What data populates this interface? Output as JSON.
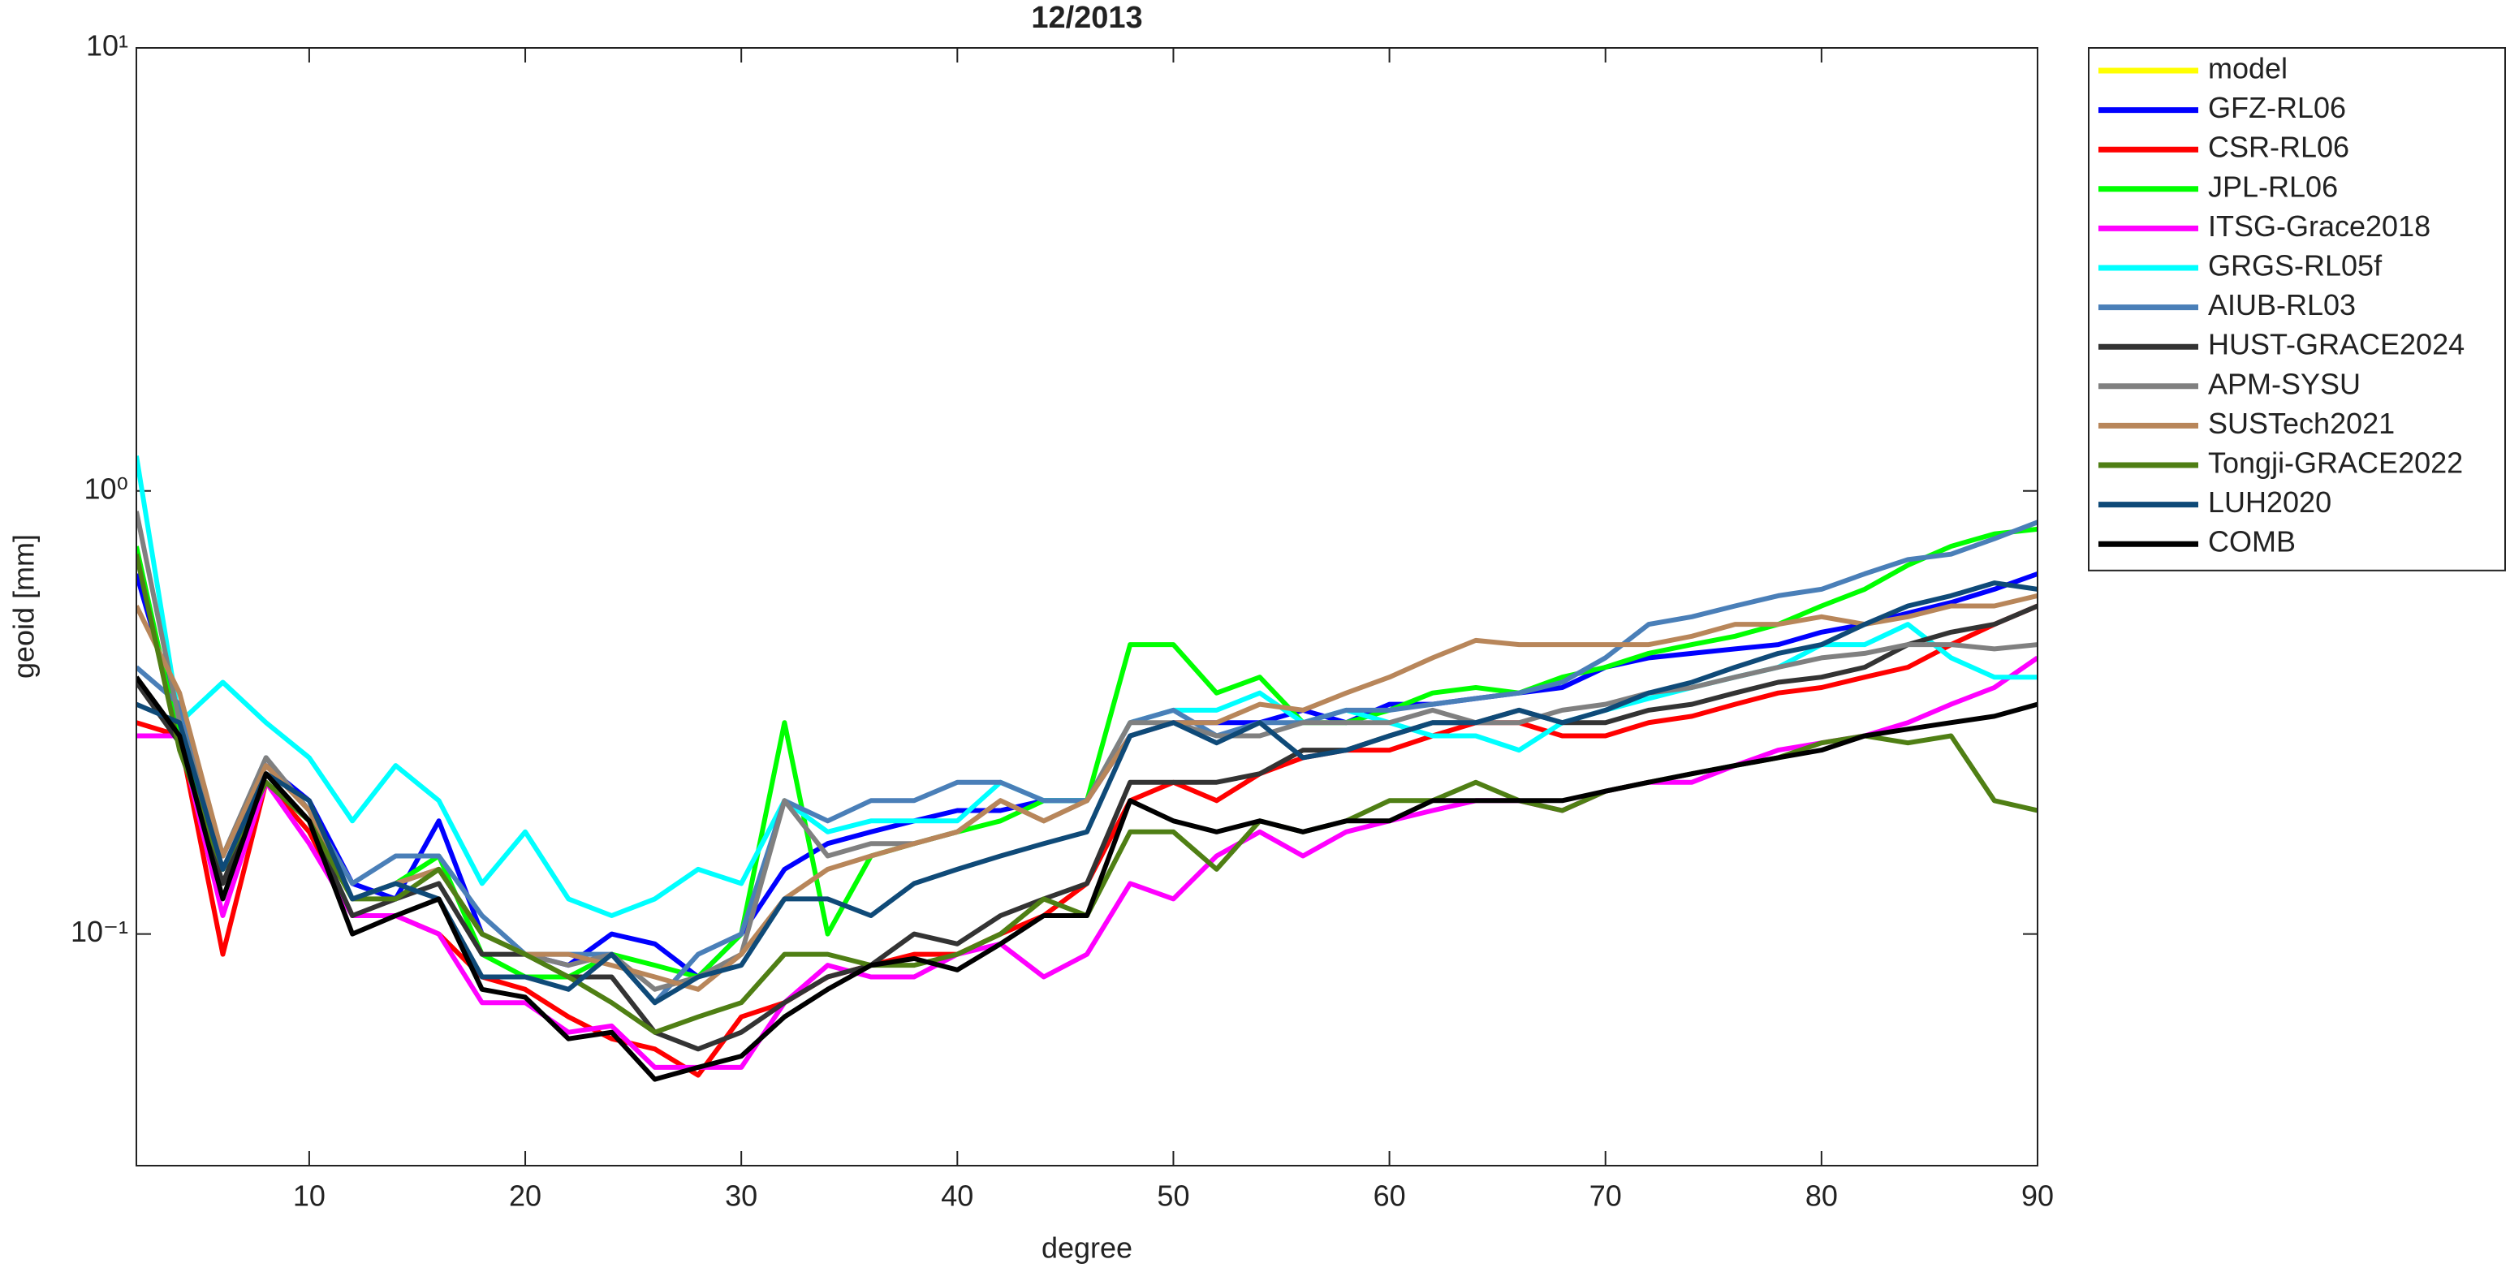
{
  "chart_data": {
    "type": "line",
    "title": "12/2013",
    "x_label": "degree",
    "y_label": "geoid [mm]",
    "y_scale": "log",
    "grid": false,
    "legend_position": "outside-right",
    "xlim": [
      2,
      90
    ],
    "xticks": [
      10,
      20,
      30,
      40,
      50,
      60,
      70,
      80,
      90
    ],
    "ylim": [
      0.03,
      10
    ],
    "yticks": [
      {
        "value": 0.1,
        "label": "10⁻¹"
      },
      {
        "value": 1,
        "label": "10⁰"
      },
      {
        "value": 10,
        "label": "10¹"
      }
    ],
    "x": [
      2,
      4,
      6,
      8,
      10,
      12,
      14,
      16,
      18,
      20,
      22,
      24,
      26,
      28,
      30,
      32,
      34,
      36,
      38,
      40,
      42,
      44,
      46,
      48,
      50,
      52,
      54,
      56,
      58,
      60,
      62,
      64,
      66,
      68,
      70,
      72,
      74,
      76,
      78,
      80,
      82,
      84,
      86,
      88,
      90
    ],
    "series": [
      {
        "name": "model",
        "color": "#ffff00",
        "values": [
          null,
          null,
          null,
          null,
          null,
          null,
          null,
          null,
          null,
          null,
          null,
          null,
          null,
          null,
          null,
          null,
          null,
          null,
          null,
          null,
          null,
          null,
          null,
          null,
          null,
          null,
          null,
          null,
          null,
          null,
          null,
          null,
          null,
          null,
          null,
          null,
          null,
          null,
          null,
          null,
          null,
          null,
          null,
          null,
          null
        ]
      },
      {
        "name": "GFZ-RL06",
        "color": "#0000ff",
        "values": [
          0.65,
          0.3,
          0.15,
          0.24,
          0.2,
          0.13,
          0.12,
          0.18,
          0.1,
          0.09,
          0.085,
          0.1,
          0.095,
          0.08,
          0.1,
          0.14,
          0.16,
          0.17,
          0.18,
          0.19,
          0.19,
          0.2,
          0.2,
          0.28,
          0.3,
          0.3,
          0.3,
          0.32,
          0.3,
          0.33,
          0.33,
          0.34,
          0.35,
          0.36,
          0.4,
          0.42,
          0.43,
          0.44,
          0.45,
          0.48,
          0.5,
          0.53,
          0.56,
          0.6,
          0.65
        ]
      },
      {
        "name": "CSR-RL06",
        "color": "#ff0000",
        "values": [
          0.3,
          0.28,
          0.09,
          0.22,
          0.17,
          0.11,
          0.11,
          0.1,
          0.08,
          0.075,
          0.065,
          0.058,
          0.055,
          0.048,
          0.065,
          0.07,
          0.08,
          0.085,
          0.09,
          0.09,
          0.1,
          0.11,
          0.13,
          0.2,
          0.22,
          0.2,
          0.23,
          0.25,
          0.26,
          0.26,
          0.28,
          0.3,
          0.3,
          0.28,
          0.28,
          0.3,
          0.31,
          0.33,
          0.35,
          0.36,
          0.38,
          0.4,
          0.45,
          0.5,
          0.55
        ]
      },
      {
        "name": "JPL-RL06",
        "color": "#00ff00",
        "values": [
          0.75,
          0.27,
          0.14,
          0.22,
          0.18,
          0.12,
          0.13,
          0.15,
          0.09,
          0.08,
          0.08,
          0.09,
          0.085,
          0.08,
          0.1,
          0.3,
          0.1,
          0.15,
          0.16,
          0.17,
          0.18,
          0.2,
          0.2,
          0.45,
          0.45,
          0.35,
          0.38,
          0.3,
          0.3,
          0.32,
          0.35,
          0.36,
          0.35,
          0.38,
          0.4,
          0.43,
          0.45,
          0.47,
          0.5,
          0.55,
          0.6,
          0.68,
          0.75,
          0.8,
          0.82
        ]
      },
      {
        "name": "ITSG-Grace2018",
        "color": "#ff00ff",
        "values": [
          0.28,
          0.28,
          0.11,
          0.22,
          0.16,
          0.11,
          0.11,
          0.1,
          0.07,
          0.07,
          0.06,
          0.062,
          0.05,
          0.05,
          0.05,
          0.07,
          0.085,
          0.08,
          0.08,
          0.09,
          0.095,
          0.08,
          0.09,
          0.13,
          0.12,
          0.15,
          0.17,
          0.15,
          0.17,
          0.18,
          0.19,
          0.2,
          0.2,
          0.19,
          0.21,
          0.22,
          0.22,
          0.24,
          0.26,
          0.27,
          0.28,
          0.3,
          0.33,
          0.36,
          0.42
        ]
      },
      {
        "name": "GRGS-RL05f",
        "color": "#00ffff",
        "values": [
          1.2,
          0.3,
          0.37,
          0.3,
          0.25,
          0.18,
          0.24,
          0.2,
          0.13,
          0.17,
          0.12,
          0.11,
          0.12,
          0.14,
          0.13,
          0.2,
          0.17,
          0.18,
          0.18,
          0.18,
          0.22,
          0.2,
          0.2,
          0.3,
          0.32,
          0.32,
          0.35,
          0.3,
          0.32,
          0.3,
          0.28,
          0.28,
          0.26,
          0.3,
          0.32,
          0.34,
          0.36,
          0.38,
          0.4,
          0.45,
          0.45,
          0.5,
          0.42,
          0.38,
          0.38
        ]
      },
      {
        "name": "AIUB-RL03",
        "color": "#4a7fb8",
        "values": [
          0.4,
          0.33,
          0.15,
          0.25,
          0.19,
          0.13,
          0.15,
          0.15,
          0.11,
          0.09,
          0.09,
          0.09,
          0.07,
          0.09,
          0.1,
          0.2,
          0.18,
          0.2,
          0.2,
          0.22,
          0.22,
          0.2,
          0.2,
          0.3,
          0.32,
          0.28,
          0.3,
          0.3,
          0.32,
          0.32,
          0.33,
          0.34,
          0.35,
          0.37,
          0.42,
          0.5,
          0.52,
          0.55,
          0.58,
          0.6,
          0.65,
          0.7,
          0.72,
          0.78,
          0.85
        ]
      },
      {
        "name": "HUST-GRACE2024",
        "color": "#333333",
        "values": [
          0.37,
          0.27,
          0.13,
          0.23,
          0.18,
          0.11,
          0.12,
          0.13,
          0.09,
          0.09,
          0.08,
          0.08,
          0.06,
          0.055,
          0.06,
          0.07,
          0.08,
          0.085,
          0.1,
          0.095,
          0.11,
          0.12,
          0.13,
          0.22,
          0.22,
          0.22,
          0.23,
          0.26,
          0.26,
          0.28,
          0.3,
          0.3,
          0.32,
          0.3,
          0.3,
          0.32,
          0.33,
          0.35,
          0.37,
          0.38,
          0.4,
          0.45,
          0.48,
          0.5,
          0.55
        ]
      },
      {
        "name": "APM-SYSU",
        "color": "#808080",
        "values": [
          0.9,
          0.3,
          0.15,
          0.25,
          0.19,
          0.12,
          0.13,
          0.14,
          0.1,
          0.09,
          0.085,
          0.09,
          0.075,
          0.08,
          0.09,
          0.2,
          0.15,
          0.16,
          0.16,
          0.17,
          0.2,
          0.18,
          0.2,
          0.3,
          0.3,
          0.28,
          0.28,
          0.3,
          0.3,
          0.3,
          0.32,
          0.3,
          0.3,
          0.32,
          0.33,
          0.35,
          0.36,
          0.38,
          0.4,
          0.42,
          0.43,
          0.45,
          0.45,
          0.44,
          0.45
        ]
      },
      {
        "name": "SUSTech2021",
        "color": "#b8865a",
        "values": [
          0.55,
          0.35,
          0.15,
          0.24,
          0.19,
          0.12,
          0.13,
          0.14,
          0.1,
          0.09,
          0.09,
          0.085,
          0.08,
          0.075,
          0.09,
          0.12,
          0.14,
          0.15,
          0.16,
          0.17,
          0.2,
          0.18,
          0.2,
          0.28,
          0.3,
          0.3,
          0.33,
          0.32,
          0.35,
          0.38,
          0.42,
          0.46,
          0.45,
          0.45,
          0.45,
          0.45,
          0.47,
          0.5,
          0.5,
          0.52,
          0.5,
          0.52,
          0.55,
          0.55,
          0.58
        ]
      },
      {
        "name": "Tongji-GRACE2022",
        "color": "#4f7f14",
        "values": [
          0.72,
          0.26,
          0.14,
          0.22,
          0.18,
          0.12,
          0.12,
          0.14,
          0.1,
          0.09,
          0.08,
          0.07,
          0.06,
          0.065,
          0.07,
          0.09,
          0.09,
          0.085,
          0.085,
          0.09,
          0.1,
          0.12,
          0.11,
          0.17,
          0.17,
          0.14,
          0.18,
          0.17,
          0.18,
          0.2,
          0.2,
          0.22,
          0.2,
          0.19,
          0.21,
          0.22,
          0.23,
          0.24,
          0.25,
          0.27,
          0.28,
          0.27,
          0.28,
          0.2,
          0.19
        ]
      },
      {
        "name": "LUH2020",
        "color": "#0f4a78",
        "values": [
          0.33,
          0.3,
          0.14,
          0.23,
          0.2,
          0.12,
          0.13,
          0.12,
          0.08,
          0.08,
          0.075,
          0.09,
          0.07,
          0.08,
          0.085,
          0.12,
          0.12,
          0.11,
          0.13,
          0.14,
          0.15,
          0.16,
          0.17,
          0.28,
          0.3,
          0.27,
          0.3,
          0.25,
          0.26,
          0.28,
          0.3,
          0.3,
          0.32,
          0.3,
          0.32,
          0.35,
          0.37,
          0.4,
          0.43,
          0.45,
          0.5,
          0.55,
          0.58,
          0.62,
          0.6
        ]
      },
      {
        "name": "COMB",
        "color": "#000000",
        "values": [
          0.38,
          0.28,
          0.12,
          0.23,
          0.18,
          0.1,
          0.11,
          0.12,
          0.075,
          0.072,
          0.058,
          0.06,
          0.047,
          0.05,
          0.053,
          0.065,
          0.075,
          0.085,
          0.088,
          0.083,
          0.095,
          0.11,
          0.11,
          0.2,
          0.18,
          0.17,
          0.18,
          0.17,
          0.18,
          0.18,
          0.2,
          0.2,
          0.2,
          0.2,
          0.21,
          0.22,
          0.23,
          0.24,
          0.25,
          0.26,
          0.28,
          0.29,
          0.3,
          0.31,
          0.33
        ]
      }
    ]
  }
}
